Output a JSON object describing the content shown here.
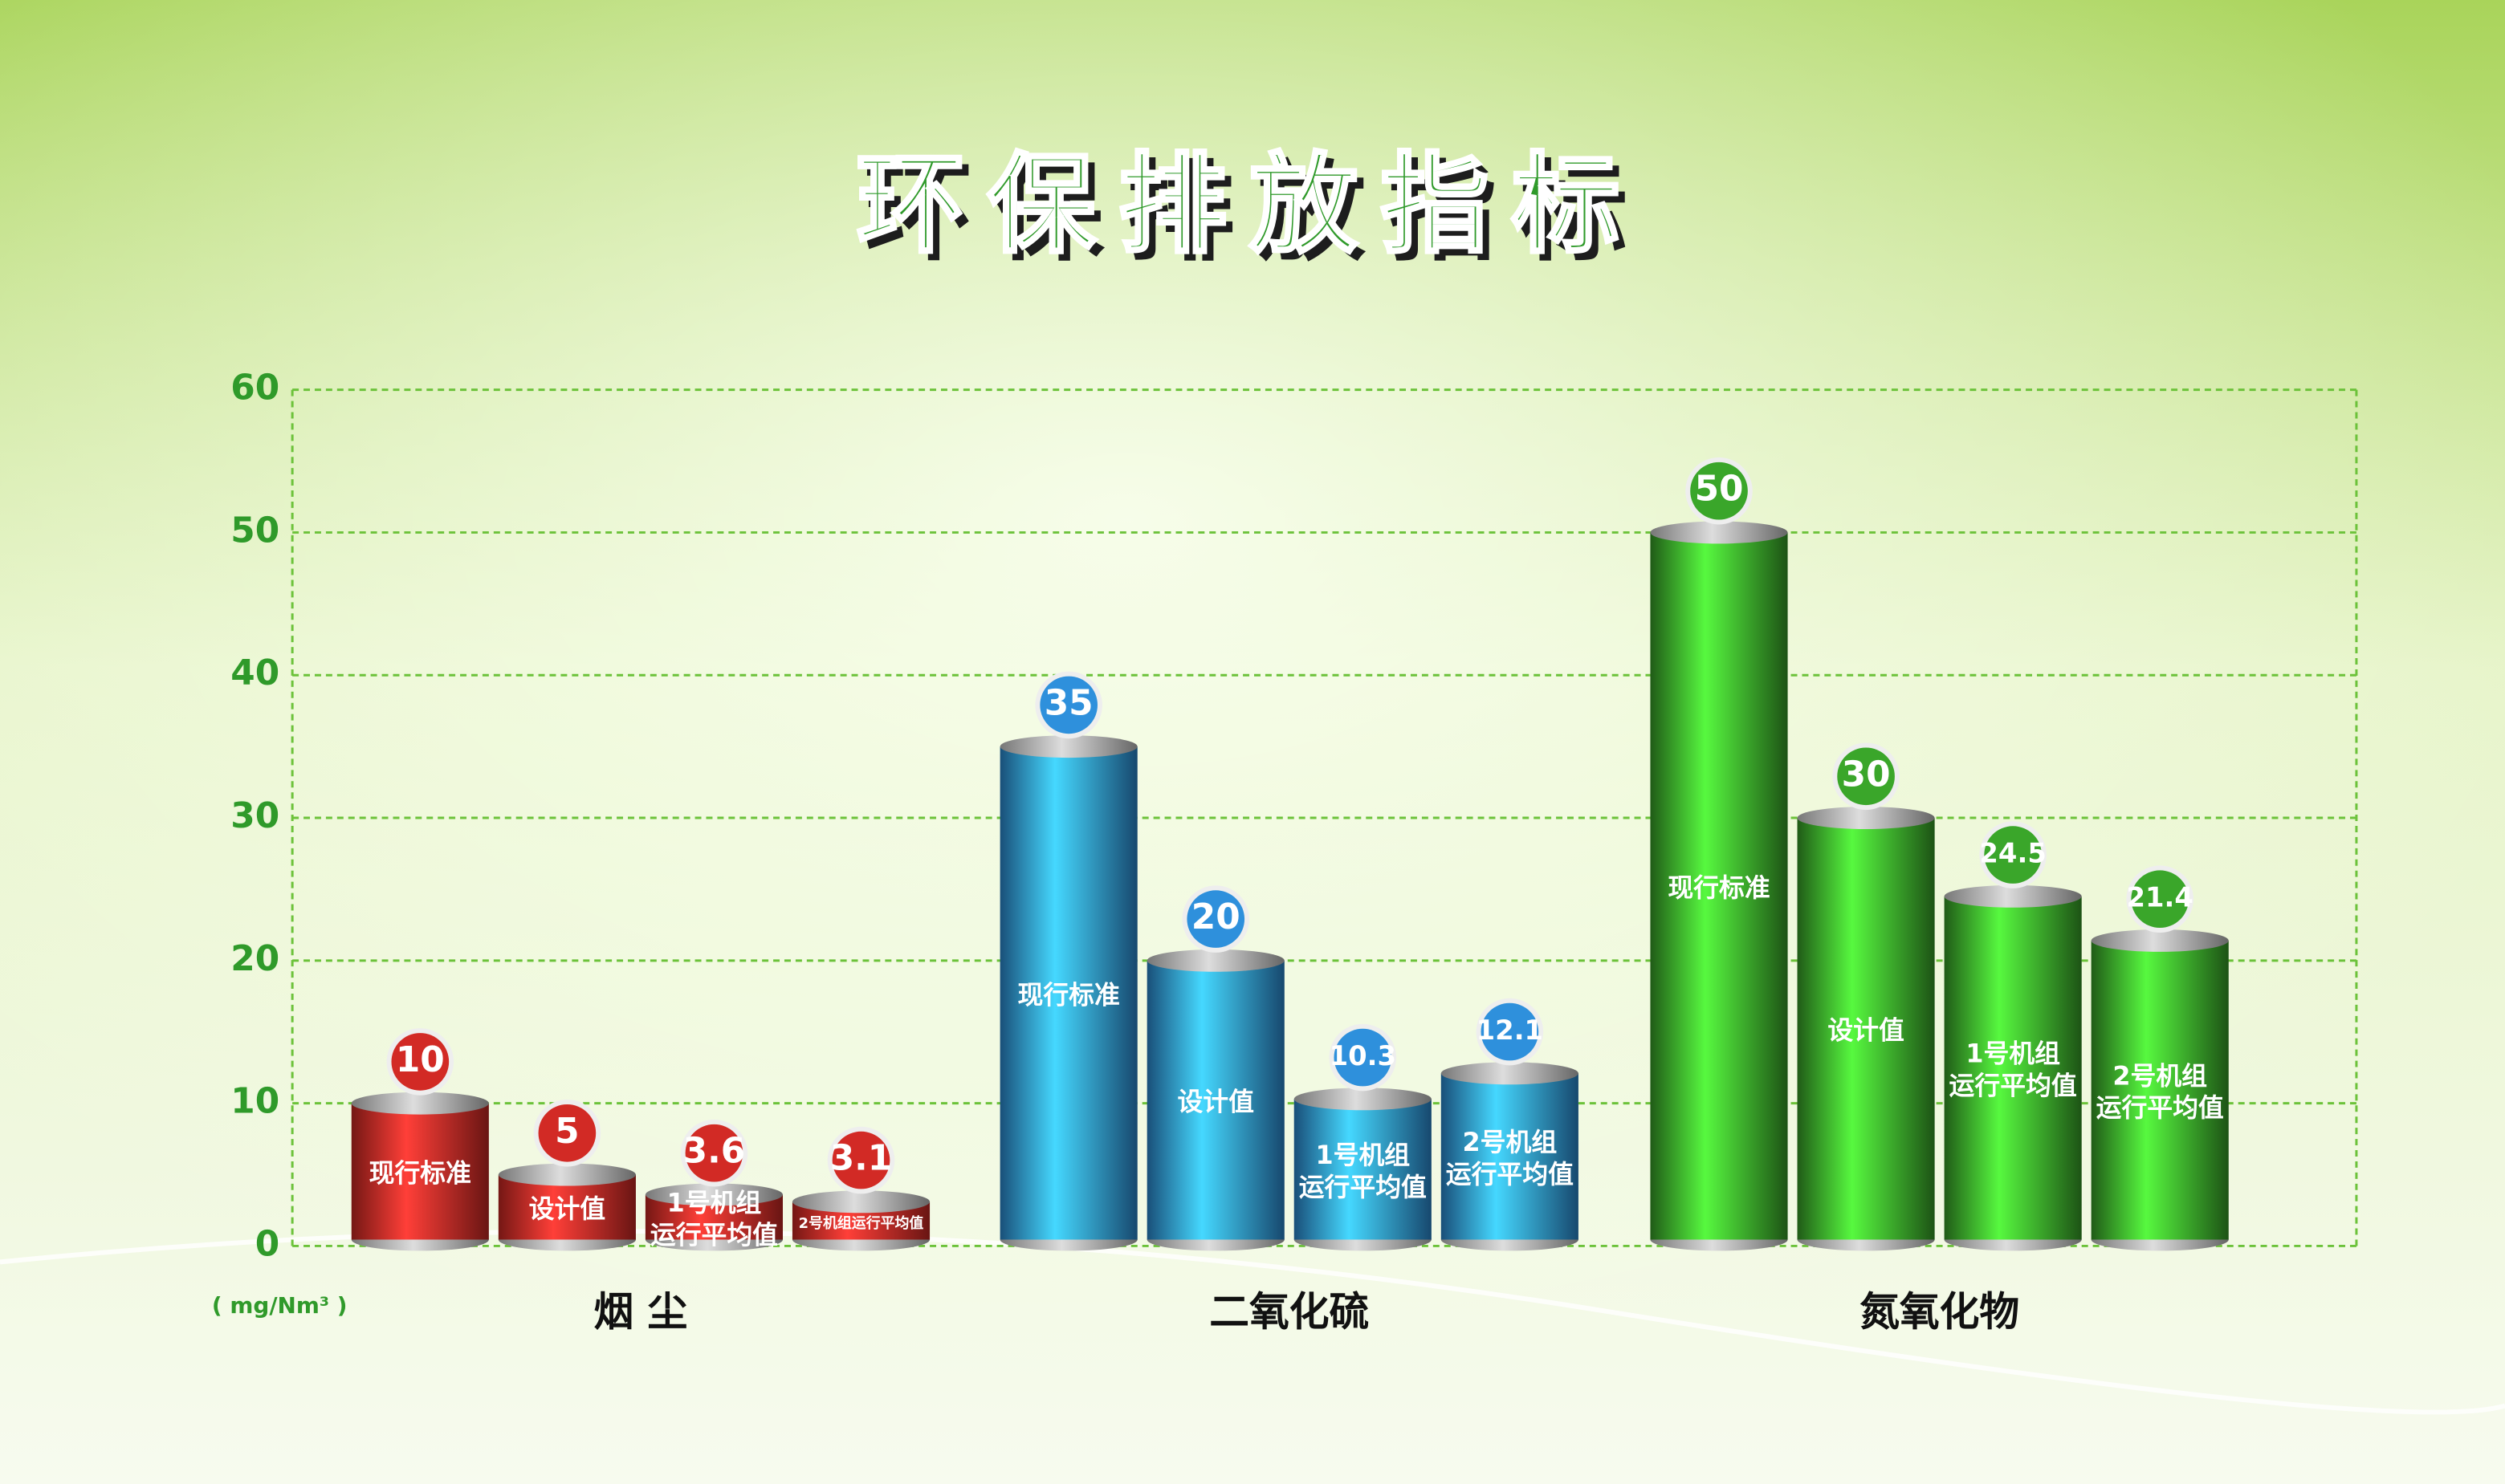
{
  "chart_data": {
    "type": "cylinder-bar",
    "title": "环保排放指标",
    "unit": "( mg/Nm³ )",
    "categories": [
      "烟 尘",
      "二氧化硫",
      "氮氧化物"
    ],
    "category_colors": [
      "#d22a25",
      "#2e90dc",
      "#3aa62a"
    ],
    "series": [
      {
        "name": "现行标准",
        "values": [
          10,
          35,
          50
        ]
      },
      {
        "name": "设计值",
        "values": [
          5,
          20,
          30
        ]
      },
      {
        "name": "1号机组运行平均值",
        "values": [
          3.6,
          10.3,
          24.5
        ]
      },
      {
        "name": "2号机组运行平均值",
        "values": [
          3.1,
          12.1,
          21.4
        ]
      }
    ],
    "ylim": [
      0,
      60
    ],
    "yticks": [
      0,
      10,
      20,
      30,
      40,
      50,
      60
    ],
    "grid": true
  }
}
